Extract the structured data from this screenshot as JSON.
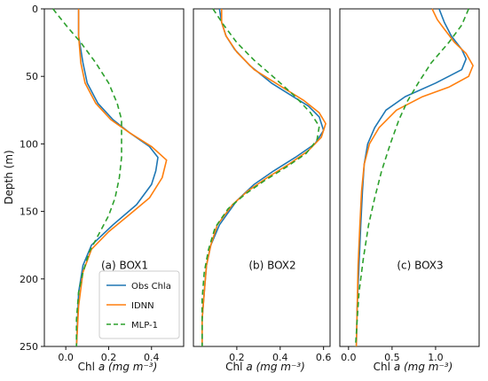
{
  "y_axis_label": "Depth (m)",
  "y_ticks": [
    0,
    50,
    100,
    150,
    200,
    250
  ],
  "x_axis_label_prefix": "Chl a",
  "x_axis_label_units": "(mg m⁻³)",
  "colors": {
    "obs": "#1f77b4",
    "idnn": "#ff7f0e",
    "mlp": "#2ca02c"
  },
  "legend": [
    {
      "key": "obs",
      "label": "Obs Chla",
      "style": "solid"
    },
    {
      "key": "idnn",
      "label": "IDNN",
      "style": "solid"
    },
    {
      "key": "mlp",
      "label": "MLP-1",
      "style": "dashed"
    }
  ],
  "chart_data": [
    {
      "type": "line",
      "panel_label": "(a) BOX1",
      "xlim": [
        -0.1,
        0.55
      ],
      "ylim": [
        250,
        0
      ],
      "x_ticks": [
        0.0,
        0.2,
        0.4
      ],
      "x_tick_labels": [
        "0.0",
        "0.2",
        "0.4"
      ],
      "series": [
        {
          "key": "obs",
          "name": "Obs Chla",
          "points": [
            [
              0.06,
              0
            ],
            [
              0.06,
              20
            ],
            [
              0.08,
              40
            ],
            [
              0.1,
              55
            ],
            [
              0.15,
              70
            ],
            [
              0.22,
              82
            ],
            [
              0.3,
              92
            ],
            [
              0.39,
              102
            ],
            [
              0.43,
              110
            ],
            [
              0.42,
              120
            ],
            [
              0.4,
              130
            ],
            [
              0.33,
              145
            ],
            [
              0.22,
              160
            ],
            [
              0.12,
              175
            ],
            [
              0.08,
              190
            ],
            [
              0.06,
              210
            ],
            [
              0.05,
              250
            ]
          ]
        },
        {
          "key": "idnn",
          "name": "IDNN",
          "points": [
            [
              0.06,
              0
            ],
            [
              0.06,
              20
            ],
            [
              0.07,
              40
            ],
            [
              0.09,
              55
            ],
            [
              0.14,
              70
            ],
            [
              0.21,
              82
            ],
            [
              0.3,
              92
            ],
            [
              0.4,
              102
            ],
            [
              0.47,
              112
            ],
            [
              0.45,
              125
            ],
            [
              0.39,
              140
            ],
            [
              0.3,
              152
            ],
            [
              0.2,
              165
            ],
            [
              0.12,
              178
            ],
            [
              0.08,
              195
            ],
            [
              0.06,
              220
            ],
            [
              0.05,
              250
            ]
          ]
        },
        {
          "key": "mlp",
          "name": "MLP-1",
          "points": [
            [
              -0.06,
              0
            ],
            [
              0.0,
              12
            ],
            [
              0.07,
              25
            ],
            [
              0.14,
              40
            ],
            [
              0.2,
              55
            ],
            [
              0.24,
              70
            ],
            [
              0.26,
              82
            ],
            [
              0.26,
              95
            ],
            [
              0.26,
              110
            ],
            [
              0.25,
              125
            ],
            [
              0.23,
              140
            ],
            [
              0.2,
              153
            ],
            [
              0.16,
              165
            ],
            [
              0.11,
              180
            ],
            [
              0.08,
              195
            ],
            [
              0.06,
              210
            ],
            [
              0.05,
              230
            ],
            [
              0.05,
              250
            ]
          ]
        }
      ]
    },
    {
      "type": "line",
      "panel_label": "(b) BOX2",
      "xlim": [
        0.0,
        0.63
      ],
      "ylim": [
        250,
        0
      ],
      "x_ticks": [
        0.2,
        0.4,
        0.6
      ],
      "x_tick_labels": [
        "0.2",
        "0.4",
        "0.6"
      ],
      "series": [
        {
          "key": "obs",
          "name": "Obs Chla",
          "points": [
            [
              0.12,
              0
            ],
            [
              0.13,
              10
            ],
            [
              0.15,
              20
            ],
            [
              0.19,
              30
            ],
            [
              0.26,
              42
            ],
            [
              0.36,
              55
            ],
            [
              0.46,
              65
            ],
            [
              0.53,
              72
            ],
            [
              0.58,
              80
            ],
            [
              0.6,
              90
            ],
            [
              0.56,
              100
            ],
            [
              0.47,
              110
            ],
            [
              0.37,
              120
            ],
            [
              0.28,
              130
            ],
            [
              0.2,
              142
            ],
            [
              0.12,
              160
            ],
            [
              0.08,
              175
            ],
            [
              0.06,
              190
            ],
            [
              0.05,
              210
            ],
            [
              0.04,
              230
            ],
            [
              0.04,
              250
            ]
          ]
        },
        {
          "key": "idnn",
          "name": "IDNN",
          "points": [
            [
              0.13,
              0
            ],
            [
              0.13,
              10
            ],
            [
              0.15,
              20
            ],
            [
              0.2,
              32
            ],
            [
              0.28,
              45
            ],
            [
              0.4,
              57
            ],
            [
              0.51,
              68
            ],
            [
              0.58,
              77
            ],
            [
              0.61,
              85
            ],
            [
              0.59,
              95
            ],
            [
              0.53,
              105
            ],
            [
              0.44,
              115
            ],
            [
              0.34,
              125
            ],
            [
              0.25,
              135
            ],
            [
              0.18,
              145
            ],
            [
              0.11,
              160
            ],
            [
              0.08,
              175
            ],
            [
              0.06,
              190
            ],
            [
              0.05,
              210
            ],
            [
              0.04,
              230
            ],
            [
              0.04,
              250
            ]
          ]
        },
        {
          "key": "mlp",
          "name": "MLP-1",
          "points": [
            [
              0.09,
              0
            ],
            [
              0.14,
              12
            ],
            [
              0.2,
              25
            ],
            [
              0.28,
              38
            ],
            [
              0.38,
              52
            ],
            [
              0.47,
              65
            ],
            [
              0.54,
              77
            ],
            [
              0.58,
              87
            ],
            [
              0.57,
              97
            ],
            [
              0.52,
              107
            ],
            [
              0.43,
              117
            ],
            [
              0.33,
              127
            ],
            [
              0.24,
              137
            ],
            [
              0.16,
              148
            ],
            [
              0.1,
              162
            ],
            [
              0.07,
              178
            ],
            [
              0.05,
              195
            ],
            [
              0.04,
              215
            ],
            [
              0.04,
              235
            ],
            [
              0.04,
              250
            ]
          ]
        }
      ]
    },
    {
      "type": "line",
      "panel_label": "(c) BOX3",
      "xlim": [
        -0.1,
        1.5
      ],
      "ylim": [
        250,
        0
      ],
      "x_ticks": [
        0.0,
        0.5,
        1.0
      ],
      "x_tick_labels": [
        "0.0",
        "0.5",
        "1.0"
      ],
      "series": [
        {
          "key": "obs",
          "name": "Obs Chla",
          "points": [
            [
              1.04,
              0
            ],
            [
              1.1,
              10
            ],
            [
              1.18,
              20
            ],
            [
              1.3,
              30
            ],
            [
              1.35,
              37
            ],
            [
              1.3,
              45
            ],
            [
              1.0,
              55
            ],
            [
              0.65,
              65
            ],
            [
              0.43,
              75
            ],
            [
              0.3,
              88
            ],
            [
              0.22,
              100
            ],
            [
              0.18,
              115
            ],
            [
              0.16,
              135
            ],
            [
              0.14,
              160
            ],
            [
              0.12,
              190
            ],
            [
              0.1,
              220
            ],
            [
              0.09,
              250
            ]
          ]
        },
        {
          "key": "idnn",
          "name": "IDNN",
          "points": [
            [
              0.96,
              0
            ],
            [
              1.02,
              8
            ],
            [
              1.1,
              15
            ],
            [
              1.22,
              25
            ],
            [
              1.35,
              33
            ],
            [
              1.43,
              42
            ],
            [
              1.38,
              50
            ],
            [
              1.15,
              58
            ],
            [
              0.85,
              65
            ],
            [
              0.55,
              75
            ],
            [
              0.35,
              88
            ],
            [
              0.24,
              100
            ],
            [
              0.18,
              115
            ],
            [
              0.15,
              135
            ],
            [
              0.13,
              160
            ],
            [
              0.11,
              190
            ],
            [
              0.1,
              220
            ],
            [
              0.09,
              250
            ]
          ]
        },
        {
          "key": "mlp",
          "name": "MLP-1",
          "points": [
            [
              1.38,
              0
            ],
            [
              1.3,
              12
            ],
            [
              1.15,
              25
            ],
            [
              0.95,
              40
            ],
            [
              0.8,
              55
            ],
            [
              0.68,
              68
            ],
            [
              0.58,
              82
            ],
            [
              0.48,
              100
            ],
            [
              0.38,
              120
            ],
            [
              0.3,
              140
            ],
            [
              0.23,
              160
            ],
            [
              0.17,
              185
            ],
            [
              0.12,
              210
            ],
            [
              0.1,
              230
            ],
            [
              0.08,
              250
            ]
          ]
        }
      ]
    }
  ]
}
